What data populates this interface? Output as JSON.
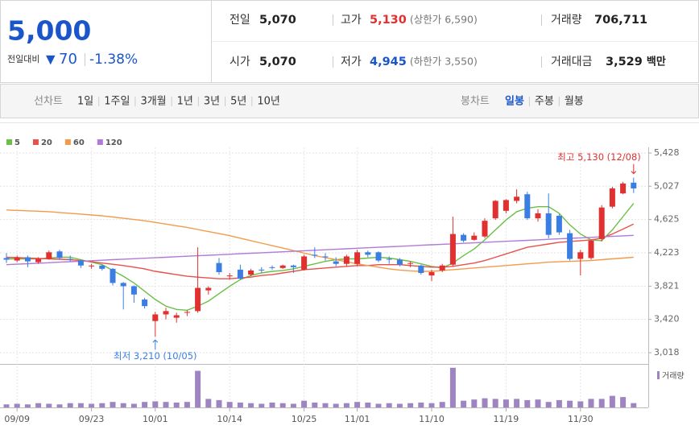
{
  "quote": {
    "price": "5,000",
    "change_label": "전일대비",
    "change_arrow": "▼",
    "change": "70",
    "change_rate": "-1.38%"
  },
  "summary": [
    [
      {
        "label": "전일",
        "value": "5,070"
      },
      {
        "label": "고가",
        "value": "5,130",
        "note": "(상한가 6,590)"
      },
      {
        "label": "거래량",
        "value": "706,711"
      }
    ],
    [
      {
        "label": "시가",
        "value": "5,070"
      },
      {
        "label": "저가",
        "value": "4,945",
        "note": "(하한가 3,550)"
      },
      {
        "label": "거래대금",
        "value": "3,529",
        "unit": "백만"
      }
    ]
  ],
  "toolbar": {
    "line_chart": "선차트",
    "line_periods": [
      "1일",
      "1주일",
      "3개월",
      "1년",
      "3년",
      "5년",
      "10년"
    ],
    "candle_chart": "봉차트",
    "candle_periods": [
      "일봉",
      "주봉",
      "월봉"
    ],
    "active_candle_period": "일봉"
  },
  "chart_data": {
    "type": "candlestick",
    "categories": [
      null,
      "09/09",
      null,
      null,
      null,
      null,
      null,
      null,
      "09/23",
      null,
      null,
      null,
      null,
      null,
      "10/01",
      null,
      null,
      null,
      null,
      null,
      null,
      "10/14",
      null,
      null,
      null,
      null,
      null,
      null,
      "10/25",
      null,
      null,
      null,
      null,
      "11/01",
      null,
      null,
      null,
      null,
      null,
      null,
      "11/10",
      null,
      null,
      null,
      null,
      null,
      null,
      "11/19",
      null,
      null,
      null,
      null,
      null,
      null,
      "11/30",
      null,
      null,
      null,
      null,
      null
    ],
    "open": [
      4160,
      4130,
      4170,
      4110,
      4150,
      4240,
      4150,
      4130,
      4060,
      4070,
      4030,
      3860,
      3820,
      3660,
      3400,
      3480,
      3440,
      3500,
      3520,
      3770,
      4100,
      3940,
      4020,
      3960,
      4020,
      4050,
      4040,
      4070,
      4020,
      4200,
      4180,
      4120,
      4090,
      4090,
      4230,
      4230,
      4150,
      4140,
      4090,
      4070,
      3950,
      4010,
      4080,
      4440,
      4380,
      4420,
      4640,
      4730,
      4850,
      4930,
      4640,
      4700,
      4670,
      4460,
      4150,
      4160,
      4390,
      4780,
      4940,
      5070
    ],
    "high": [
      4220,
      4190,
      4190,
      4170,
      4250,
      4260,
      4190,
      4140,
      4090,
      4080,
      4040,
      3870,
      3830,
      3680,
      3510,
      3560,
      3500,
      3530,
      4290,
      3820,
      4160,
      3980,
      4080,
      4030,
      4050,
      4070,
      4080,
      4080,
      4200,
      4290,
      4220,
      4170,
      4200,
      4260,
      4250,
      4240,
      4180,
      4160,
      4120,
      4080,
      4020,
      4090,
      4660,
      4460,
      4470,
      4640,
      4860,
      4870,
      4990,
      4960,
      4750,
      4940,
      4690,
      4500,
      4260,
      4380,
      4800,
      5020,
      5080,
      5130
    ],
    "low": [
      4100,
      4110,
      4050,
      4090,
      4140,
      4140,
      4120,
      4040,
      4030,
      4010,
      3830,
      3540,
      3620,
      3550,
      3210,
      3420,
      3380,
      3460,
      3500,
      3720,
      3960,
      3900,
      3900,
      3940,
      3980,
      4020,
      4030,
      3980,
      4010,
      4160,
      4130,
      4060,
      4060,
      4060,
      4170,
      4110,
      4090,
      4060,
      4050,
      3960,
      3880,
      3990,
      4060,
      4350,
      4370,
      4400,
      4620,
      4700,
      4820,
      4620,
      4600,
      4400,
      4440,
      4130,
      3950,
      4140,
      4360,
      4760,
      4930,
      4945
    ],
    "close": [
      4140,
      4170,
      4120,
      4150,
      4230,
      4160,
      4140,
      4070,
      4070,
      4030,
      3860,
      3820,
      3720,
      3580,
      3480,
      3520,
      3470,
      3510,
      3800,
      3800,
      3990,
      3950,
      3910,
      4010,
      4010,
      4040,
      4070,
      4050,
      4180,
      4190,
      4170,
      4090,
      4180,
      4230,
      4200,
      4130,
      4140,
      4080,
      4100,
      3980,
      3990,
      4070,
      4450,
      4370,
      4430,
      4610,
      4850,
      4860,
      4900,
      4640,
      4700,
      4440,
      4470,
      4150,
      4230,
      4370,
      4770,
      5000,
      5060,
      5000
    ],
    "up_color": "#e0302f",
    "down_color": "#3a7ee4",
    "ylim": [
      2921,
      5496
    ],
    "yticks": [
      {
        "value": 5428,
        "label": "5,428"
      },
      {
        "value": 5027,
        "label": "5,027"
      },
      {
        "value": 4625,
        "label": "4,625"
      },
      {
        "value": 4223,
        "label": "4,223"
      },
      {
        "value": 3821,
        "label": "3,821"
      },
      {
        "value": 3420,
        "label": "3,420"
      },
      {
        "value": 3018,
        "label": "3,018"
      }
    ],
    "grid": true,
    "legend": "top-left",
    "series": [
      {
        "name": "5",
        "color": "#6cbf45",
        "values": [
          4150,
          4150,
          4150,
          4150,
          4160,
          4170,
          4170,
          4140,
          4110,
          4080,
          4010,
          3940,
          3860,
          3760,
          3660,
          3580,
          3540,
          3530,
          3580,
          3640,
          3730,
          3820,
          3900,
          3950,
          3980,
          4000,
          4010,
          4030,
          4060,
          4090,
          4120,
          4140,
          4150,
          4150,
          4160,
          4170,
          4160,
          4140,
          4120,
          4090,
          4060,
          4040,
          4100,
          4190,
          4270,
          4380,
          4500,
          4620,
          4720,
          4760,
          4780,
          4780,
          4700,
          4560,
          4450,
          4380,
          4370,
          4500,
          4660,
          4820
        ]
      },
      {
        "name": "20",
        "color": "#e8514b",
        "values": [
          4170,
          4165,
          4160,
          4155,
          4150,
          4145,
          4140,
          4130,
          4115,
          4100,
          4085,
          4070,
          4050,
          4030,
          4000,
          3980,
          3960,
          3940,
          3930,
          3920,
          3910,
          3910,
          3920,
          3930,
          3950,
          3960,
          3980,
          4000,
          4020,
          4030,
          4040,
          4050,
          4060,
          4070,
          4070,
          4080,
          4080,
          4080,
          4070,
          4060,
          4050,
          4050,
          4060,
          4080,
          4100,
          4130,
          4170,
          4210,
          4250,
          4290,
          4310,
          4330,
          4350,
          4360,
          4370,
          4380,
          4400,
          4450,
          4510,
          4570
        ]
      },
      {
        "name": "60",
        "color": "#f39b4a",
        "values": [
          4740,
          4735,
          4730,
          4725,
          4720,
          4710,
          4700,
          4690,
          4680,
          4670,
          4655,
          4640,
          4625,
          4610,
          4590,
          4570,
          4550,
          4530,
          4505,
          4480,
          4455,
          4430,
          4400,
          4370,
          4340,
          4310,
          4280,
          4250,
          4220,
          4190,
          4165,
          4140,
          4115,
          4090,
          4070,
          4050,
          4030,
          4015,
          4005,
          4000,
          4000,
          4010,
          4020,
          4030,
          4040,
          4050,
          4060,
          4070,
          4080,
          4090,
          4100,
          4110,
          4115,
          4120,
          4125,
          4130,
          4140,
          4150,
          4160,
          4170
        ]
      },
      {
        "name": "120",
        "color": "#b07ad6",
        "values": [
          4080,
          4086,
          4092,
          4098,
          4104,
          4110,
          4116,
          4122,
          4128,
          4134,
          4140,
          4146,
          4152,
          4158,
          4164,
          4170,
          4176,
          4182,
          4188,
          4194,
          4200,
          4206,
          4212,
          4218,
          4224,
          4230,
          4236,
          4242,
          4248,
          4254,
          4260,
          4266,
          4272,
          4278,
          4284,
          4290,
          4296,
          4302,
          4308,
          4314,
          4320,
          4326,
          4332,
          4338,
          4344,
          4350,
          4356,
          4362,
          4368,
          4374,
          4380,
          4386,
          4392,
          4398,
          4404,
          4410,
          4416,
          4422,
          4428,
          4434
        ]
      }
    ],
    "volume": {
      "name": "거래량",
      "color": "#9f84c2",
      "ylim": [
        0,
        6600000
      ],
      "values": [
        500000,
        600000,
        500000,
        700000,
        600000,
        500000,
        700000,
        700000,
        600000,
        700000,
        900000,
        700000,
        600000,
        900000,
        1000000,
        900000,
        800000,
        900000,
        6000000,
        1400000,
        1200000,
        900000,
        800000,
        700000,
        600000,
        800000,
        700000,
        600000,
        1100000,
        800000,
        700000,
        600000,
        700000,
        900000,
        800000,
        600000,
        700000,
        600000,
        700000,
        800000,
        700000,
        900000,
        6500000,
        1100000,
        1300000,
        1500000,
        1400000,
        1300000,
        1400000,
        1200000,
        1300000,
        900000,
        1200000,
        1100000,
        1000000,
        1400000,
        1400000,
        1900000,
        1700000,
        706711
      ]
    },
    "annotations": [
      {
        "text": "최고 5,130 (12/08)",
        "kind": "high",
        "value": 5130,
        "color": "#e0302f"
      },
      {
        "text": "최저 3,210 (10/05)",
        "kind": "low",
        "value": 3210,
        "color": "#3a7ee4"
      }
    ]
  }
}
